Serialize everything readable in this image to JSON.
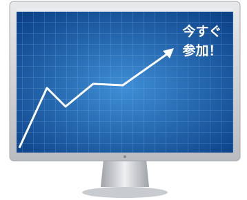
{
  "callout": {
    "line1": "今すぐ",
    "line2": "参加！"
  }
}
